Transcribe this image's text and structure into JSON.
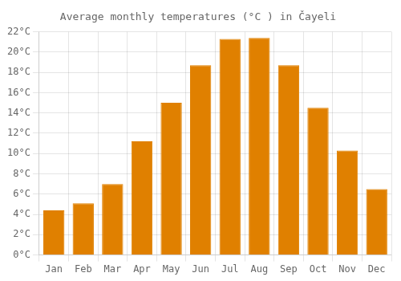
{
  "chart_data": {
    "type": "bar",
    "title": "Average monthly temperatures (°C ) in Čayeli",
    "categories": [
      "Jan",
      "Feb",
      "Mar",
      "Apr",
      "May",
      "Jun",
      "Jul",
      "Aug",
      "Sep",
      "Oct",
      "Nov",
      "Dec"
    ],
    "values": [
      4.4,
      5.1,
      7.0,
      11.2,
      15.0,
      18.7,
      21.3,
      21.4,
      18.7,
      14.5,
      10.3,
      6.5
    ],
    "color": "#E08000",
    "ylim": [
      0,
      22
    ],
    "yticks": [
      {
        "value": 0,
        "label": "0°C"
      },
      {
        "value": 2,
        "label": "2°C"
      },
      {
        "value": 4,
        "label": "4°C"
      },
      {
        "value": 6,
        "label": "6°C"
      },
      {
        "value": 8,
        "label": "8°C"
      },
      {
        "value": 10,
        "label": "10°C"
      },
      {
        "value": 12,
        "label": "12°C"
      },
      {
        "value": 14,
        "label": "14°C"
      },
      {
        "value": 16,
        "label": "16°C"
      },
      {
        "value": 18,
        "label": "18°C"
      },
      {
        "value": 20,
        "label": "20°C"
      },
      {
        "value": 22,
        "label": "22°C"
      }
    ],
    "grid": true
  }
}
